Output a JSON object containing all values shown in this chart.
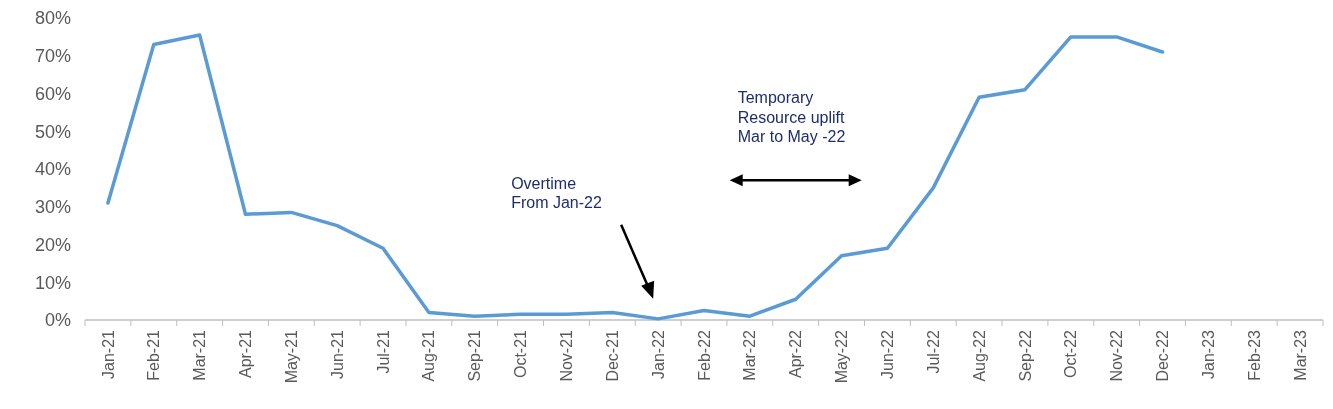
{
  "chart_data": {
    "type": "line",
    "categories": [
      "Jan-21",
      "Feb-21",
      "Mar-21",
      "Apr-21",
      "May-21",
      "Jun-21",
      "Jul-21",
      "Aug-21",
      "Sep-21",
      "Oct-21",
      "Nov-21",
      "Dec-21",
      "Jan-22",
      "Feb-22",
      "Mar-22",
      "Apr-22",
      "May-22",
      "Jun-22",
      "Jul-22",
      "Aug-22",
      "Sep-22",
      "Oct-22",
      "Nov-22",
      "Dec-22",
      "Jan-23",
      "Feb-23",
      "Mar-23"
    ],
    "series": [
      {
        "color": "#5b9bd5",
        "values": [
          31,
          73,
          75.5,
          28,
          28.5,
          25,
          19,
          2,
          1,
          1.5,
          1.5,
          2,
          0.3,
          2.5,
          1,
          5.5,
          17,
          19,
          35,
          59,
          61,
          75,
          75,
          71,
          null,
          null,
          null
        ]
      }
    ],
    "ylim": [
      0,
      80
    ],
    "yticks": [
      {
        "value": 0,
        "label": "0%"
      },
      {
        "value": 10,
        "label": "10%"
      },
      {
        "value": 20,
        "label": "20%"
      },
      {
        "value": 30,
        "label": "30%"
      },
      {
        "value": 40,
        "label": "40%"
      },
      {
        "value": 50,
        "label": "50%"
      },
      {
        "value": 60,
        "label": "60%"
      },
      {
        "value": 70,
        "label": "70%"
      },
      {
        "value": 80,
        "label": "80%"
      }
    ],
    "grid": false,
    "marker": "none",
    "line_style": "solid",
    "annotations": [
      "Overtime\nFrom Jan-22",
      "Temporary\nResource uplift\nMar to May -22"
    ]
  }
}
